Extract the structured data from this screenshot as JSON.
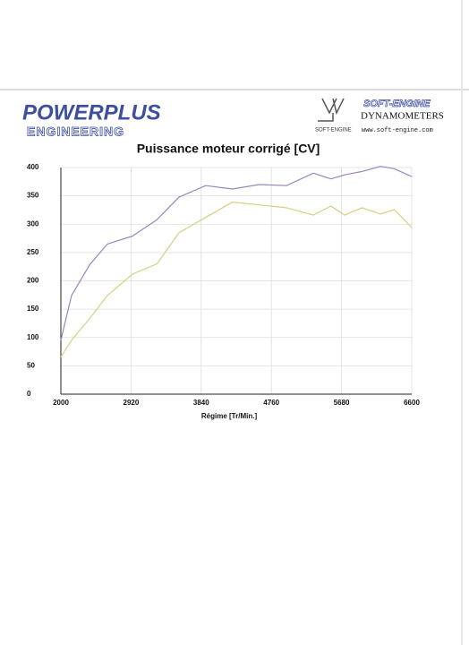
{
  "header": {
    "brand_top": "POWERPLUS",
    "brand_bottom": "ENGINEERING",
    "partner": "SOFT-ENGINE",
    "partner_small": "SOFT-ENGINE",
    "partner_line": "DYNAMOMETERS",
    "website": "www.soft-engine.com"
  },
  "chart_data": {
    "type": "line",
    "title": "Puissance moteur corrigé [CV]",
    "x_label": "Régime [Tr/Min.]",
    "x": [
      2000,
      2140,
      2380,
      2610,
      2940,
      3260,
      3550,
      3900,
      4250,
      4600,
      4960,
      5310,
      5540,
      5720,
      5950,
      6190,
      6370,
      6600
    ],
    "series": [
      {
        "color": "#9b86bd",
        "values": [
          95,
          174,
          229,
          265,
          279,
          308,
          348,
          368,
          362,
          370,
          368,
          390,
          380,
          387,
          393,
          402,
          398,
          384
        ]
      },
      {
        "color": "#d6cf82",
        "values": [
          66,
          95,
          134,
          174,
          212,
          230,
          285,
          312,
          339,
          334,
          329,
          316,
          332,
          316,
          329,
          318,
          326,
          294
        ]
      }
    ],
    "xlim": [
      2000,
      6600
    ],
    "xticks": [
      2000,
      2920,
      3840,
      4760,
      5680,
      6600
    ],
    "ylim": [
      0,
      400
    ],
    "yticks": [
      0,
      50,
      100,
      150,
      200,
      250,
      300,
      350,
      400
    ],
    "grid": true
  }
}
